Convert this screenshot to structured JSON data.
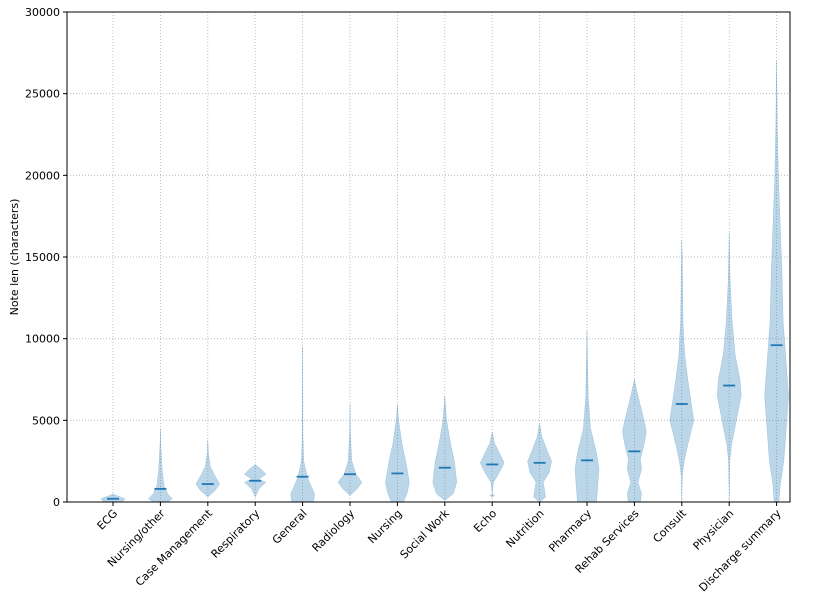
{
  "chart_data": {
    "type": "violin",
    "ylabel": "Note len (characters)",
    "categories": [
      "ECG",
      "Nursing/other",
      "Case Management",
      "Respiratory",
      "General",
      "Radiology",
      "Nursing",
      "Social Work",
      "Echo",
      "Nutrition",
      "Pharmacy",
      "Rehab Services",
      "Consult",
      "Physician",
      "Discharge summary"
    ],
    "medians": [
      200,
      800,
      1100,
      1300,
      1550,
      1700,
      1750,
      2100,
      2300,
      2400,
      2550,
      3100,
      6000,
      7130,
      9600
    ],
    "profiles": [
      {
        "values": [
          0,
          200,
          400,
          500
        ],
        "density": [
          0.8,
          1,
          0.3,
          0
        ]
      },
      {
        "values": [
          0,
          200,
          500,
          1000,
          2000,
          3500,
          4500
        ],
        "density": [
          0.6,
          1,
          0.6,
          0.3,
          0.15,
          0.03,
          0
        ]
      },
      {
        "values": [
          300,
          700,
          1100,
          1600,
          2200,
          3000,
          3800
        ],
        "density": [
          0,
          0.6,
          1,
          0.6,
          0.2,
          0.05,
          0
        ]
      },
      {
        "values": [
          300,
          800,
          1200,
          1400,
          1700,
          2000,
          2300
        ],
        "density": [
          0,
          0.3,
          0.9,
          0.3,
          0.9,
          0.5,
          0
        ]
      },
      {
        "values": [
          0,
          500,
          1000,
          1500,
          2500,
          4000,
          9500
        ],
        "density": [
          0.9,
          1,
          0.7,
          0.4,
          0.1,
          0.03,
          0
        ]
      },
      {
        "values": [
          400,
          800,
          1200,
          1700,
          2500,
          4000,
          5000,
          6000
        ],
        "density": [
          0,
          0.6,
          1,
          0.5,
          0.15,
          0.05,
          0.02,
          0
        ]
      },
      {
        "values": [
          0,
          500,
          1200,
          2500,
          3500,
          5000,
          6000
        ],
        "density": [
          0.5,
          0.8,
          1,
          0.7,
          0.4,
          0.1,
          0
        ]
      },
      {
        "values": [
          100,
          500,
          1200,
          2500,
          3500,
          5000,
          6500
        ],
        "density": [
          0,
          0.7,
          1,
          0.8,
          0.5,
          0.15,
          0
        ]
      },
      {
        "values": [
          300,
          400,
          500,
          1200,
          1800,
          2400,
          3000,
          3600,
          4300
        ],
        "density": [
          0,
          0.2,
          0,
          0.1,
          0.6,
          1,
          0.6,
          0.2,
          0
        ]
      },
      {
        "values": [
          0,
          300,
          800,
          1200,
          1800,
          2500,
          3200,
          4000,
          4800
        ],
        "density": [
          0,
          0.5,
          0.4,
          0.3,
          0.8,
          1,
          0.6,
          0.2,
          0
        ]
      },
      {
        "values": [
          0,
          1000,
          2000,
          3000,
          4500,
          6500,
          10500
        ],
        "density": [
          0.8,
          0.9,
          1,
          0.8,
          0.3,
          0.1,
          0
        ]
      },
      {
        "values": [
          0,
          500,
          1200,
          2000,
          2600,
          3500,
          4300,
          5000,
          6500,
          7500
        ],
        "density": [
          0.5,
          0.6,
          0.3,
          0.6,
          0.5,
          0.8,
          1,
          0.8,
          0.3,
          0
        ]
      },
      {
        "values": [
          0,
          1500,
          2500,
          3500,
          5000,
          6000,
          7500,
          9000,
          11000,
          15000,
          16000
        ],
        "density": [
          0,
          0.03,
          0.2,
          0.5,
          1,
          0.8,
          0.5,
          0.25,
          0.1,
          0.03,
          0
        ]
      },
      {
        "values": [
          0,
          2500,
          3500,
          5000,
          6500,
          7500,
          9000,
          11000,
          13500,
          16500
        ],
        "density": [
          0,
          0.05,
          0.2,
          0.6,
          1,
          0.9,
          0.5,
          0.25,
          0.08,
          0
        ]
      },
      {
        "values": [
          0,
          1000,
          2500,
          4500,
          6500,
          8500,
          11000,
          14000,
          17000,
          20000,
          23000,
          27000
        ],
        "density": [
          0.2,
          0.3,
          0.6,
          0.8,
          1,
          0.8,
          0.55,
          0.45,
          0.3,
          0.15,
          0.07,
          0
        ]
      }
    ],
    "color": "#1f77b4",
    "ylim": [
      0,
      30000
    ],
    "yticks": [
      0,
      5000,
      10000,
      15000,
      20000,
      25000,
      30000
    ],
    "grid": true
  }
}
